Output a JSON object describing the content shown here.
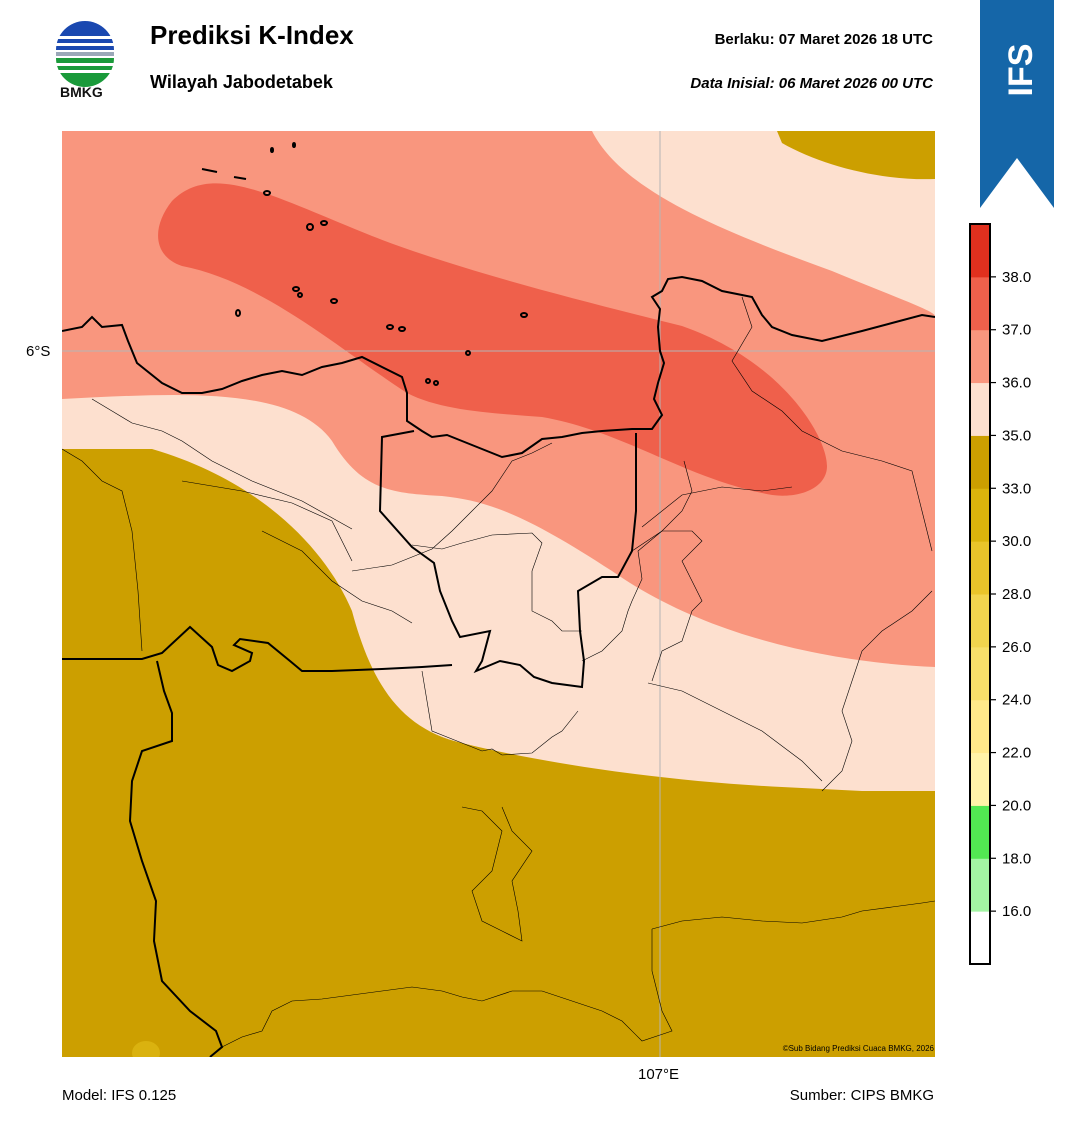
{
  "header": {
    "logo_text": "BMKG",
    "title": "Prediksi K-Index",
    "subtitle": "Wilayah Jabodetabek",
    "valid_label": "Berlaku:  07 Maret 2026 18 UTC",
    "init_label": "Data Inisial:  06 Maret 2026 00 UTC"
  },
  "ribbon": {
    "text": "IFS",
    "color": "#1566a8"
  },
  "map": {
    "lat_label": "6°S",
    "lon_label": "107°E",
    "copyright": "©Sub Bidang Prediksi Cuaca BMKG, 2026"
  },
  "colorbar": {
    "ticks": [
      "16.0",
      "18.0",
      "20.0",
      "22.0",
      "24.0",
      "26.0",
      "28.0",
      "30.0",
      "33.0",
      "35.0",
      "36.0",
      "37.0",
      "38.0"
    ],
    "colors": [
      "#ffffff",
      "#a3f5a3",
      "#52e852",
      "#fff3a8",
      "#ffe98a",
      "#f7df6a",
      "#f1d44e",
      "#e9c42a",
      "#dbb40c",
      "#cc9f00",
      "#fde0cf",
      "#f9967e",
      "#ef604b",
      "#e0301e"
    ]
  },
  "footer": {
    "model": "Model: IFS 0.125",
    "source": "Sumber: CIPS BMKG"
  }
}
